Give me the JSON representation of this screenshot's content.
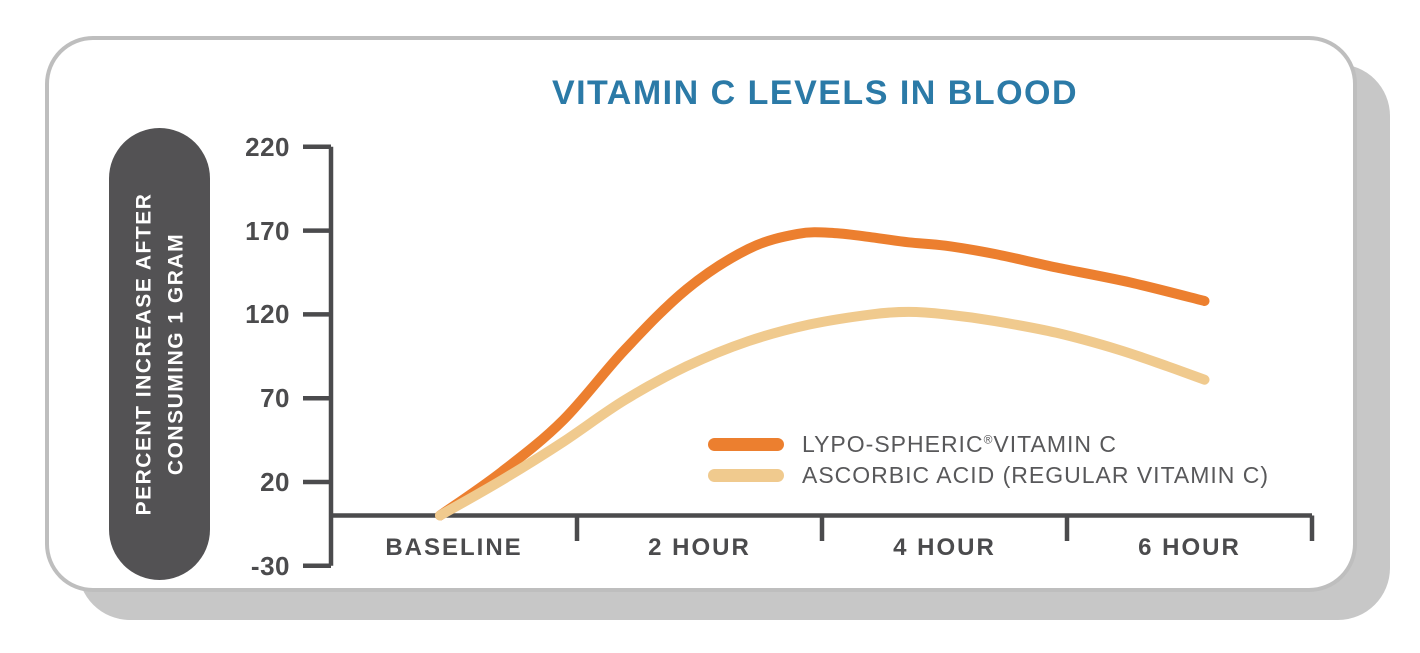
{
  "ui": {
    "colors": {
      "title_blue": "#2b7aa7",
      "axis_gray": "#4b4b4d",
      "pill_gray": "#535254",
      "card_border": "#bebebe",
      "card_shadow": "#c7c7c7",
      "lypo_orange": "#ec7f2f",
      "ascorbic_tan": "#f0ca8e"
    }
  },
  "legend": {
    "items": [
      {
        "pre": "LYPO-SPHERIC",
        "sup": "®",
        "post": "VITAMIN C"
      },
      {
        "pre": "ASCORBIC ACID (REGULAR VITAMIN C)",
        "sup": "",
        "post": ""
      }
    ]
  },
  "y_axis_pill": {
    "line1": "PERCENT INCREASE AFTER",
    "line2": "CONSUMING 1 GRAM"
  },
  "chart_data": {
    "type": "line",
    "title": "VITAMIN C LEVELS IN BLOOD",
    "ylabel": "PERCENT INCREASE AFTER CONSUMING 1 GRAM",
    "xlabel": "",
    "ylim": [
      -30,
      220
    ],
    "grid": false,
    "legend_position": "inside lower right",
    "y_axis": {
      "ticks": [
        220,
        170,
        120,
        70,
        20,
        -30
      ]
    },
    "x_axis": {
      "labels": [
        "BASELINE",
        "2 HOUR",
        "4 HOUR",
        "6 HOUR"
      ]
    },
    "series": [
      {
        "name": "LYPO-SPHERIC®VITAMIN C",
        "color": "#ec7f2f",
        "units": {
          "t": "hours",
          "v": "percent increase"
        },
        "points": [
          [
            0.0,
            0
          ],
          [
            0.5,
            26
          ],
          [
            1.0,
            57
          ],
          [
            1.5,
            99
          ],
          [
            2.0,
            135
          ],
          [
            2.5,
            159
          ],
          [
            2.9,
            168
          ],
          [
            3.2,
            168.5
          ],
          [
            3.5,
            166
          ],
          [
            3.8,
            163
          ],
          [
            4.1,
            161
          ],
          [
            4.5,
            156
          ],
          [
            5.0,
            148
          ],
          [
            5.6,
            139
          ],
          [
            6.2,
            128
          ]
        ]
      },
      {
        "name": "ASCORBIC ACID (REGULAR VITAMIN C)",
        "color": "#f0ca8e",
        "units": {
          "t": "hours",
          "v": "percent increase"
        },
        "points": [
          [
            0.0,
            0
          ],
          [
            0.5,
            21
          ],
          [
            1.0,
            44
          ],
          [
            1.5,
            69
          ],
          [
            2.0,
            89
          ],
          [
            2.5,
            104
          ],
          [
            3.0,
            114
          ],
          [
            3.5,
            120
          ],
          [
            3.8,
            121.5
          ],
          [
            4.1,
            120
          ],
          [
            4.5,
            116
          ],
          [
            5.0,
            109
          ],
          [
            5.5,
            99
          ],
          [
            5.9,
            89
          ],
          [
            6.2,
            81
          ]
        ]
      }
    ]
  }
}
